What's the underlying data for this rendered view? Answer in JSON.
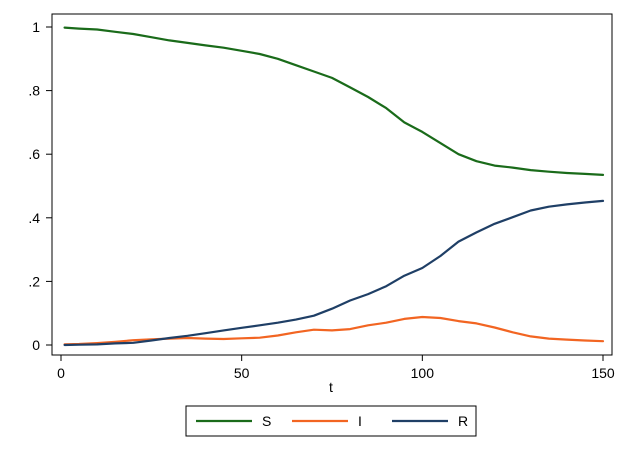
{
  "chart_data": {
    "type": "line",
    "xlabel": "t",
    "ylabel": "",
    "xlim": [
      0,
      150
    ],
    "ylim": [
      0,
      1
    ],
    "x_ticks": [
      0,
      50,
      100,
      150
    ],
    "x_tick_labels": [
      "0",
      "50",
      "100",
      "150"
    ],
    "y_ticks": [
      0,
      0.2,
      0.4,
      0.6,
      0.8,
      1
    ],
    "y_tick_labels": [
      "0",
      ".2",
      ".4",
      ".6",
      ".8",
      "1"
    ],
    "grid": false,
    "legend_position": "bottom",
    "x": [
      1,
      5,
      10,
      15,
      20,
      25,
      30,
      35,
      40,
      45,
      50,
      55,
      60,
      65,
      70,
      75,
      80,
      85,
      90,
      95,
      100,
      105,
      110,
      115,
      120,
      125,
      130,
      135,
      140,
      145,
      150
    ],
    "series": [
      {
        "name": "S",
        "color": "#1a6b1a",
        "values": [
          0.998,
          0.995,
          0.992,
          0.985,
          0.978,
          0.968,
          0.958,
          0.95,
          0.942,
          0.935,
          0.925,
          0.915,
          0.9,
          0.88,
          0.86,
          0.84,
          0.81,
          0.78,
          0.745,
          0.7,
          0.67,
          0.635,
          0.6,
          0.578,
          0.564,
          0.558,
          0.55,
          0.545,
          0.541,
          0.538,
          0.535
        ]
      },
      {
        "name": "I",
        "color": "#f26522",
        "values": [
          0.002,
          0.003,
          0.006,
          0.01,
          0.015,
          0.018,
          0.02,
          0.022,
          0.02,
          0.019,
          0.021,
          0.023,
          0.03,
          0.04,
          0.048,
          0.046,
          0.05,
          0.062,
          0.07,
          0.082,
          0.088,
          0.085,
          0.075,
          0.068,
          0.055,
          0.04,
          0.027,
          0.02,
          0.017,
          0.014,
          0.012
        ]
      },
      {
        "name": "R",
        "color": "#1f3f66",
        "values": [
          0.0,
          0.001,
          0.002,
          0.005,
          0.007,
          0.014,
          0.022,
          0.029,
          0.037,
          0.046,
          0.054,
          0.062,
          0.07,
          0.08,
          0.092,
          0.114,
          0.14,
          0.16,
          0.185,
          0.218,
          0.242,
          0.28,
          0.325,
          0.354,
          0.381,
          0.402,
          0.423,
          0.435,
          0.442,
          0.448,
          0.453
        ]
      }
    ]
  }
}
